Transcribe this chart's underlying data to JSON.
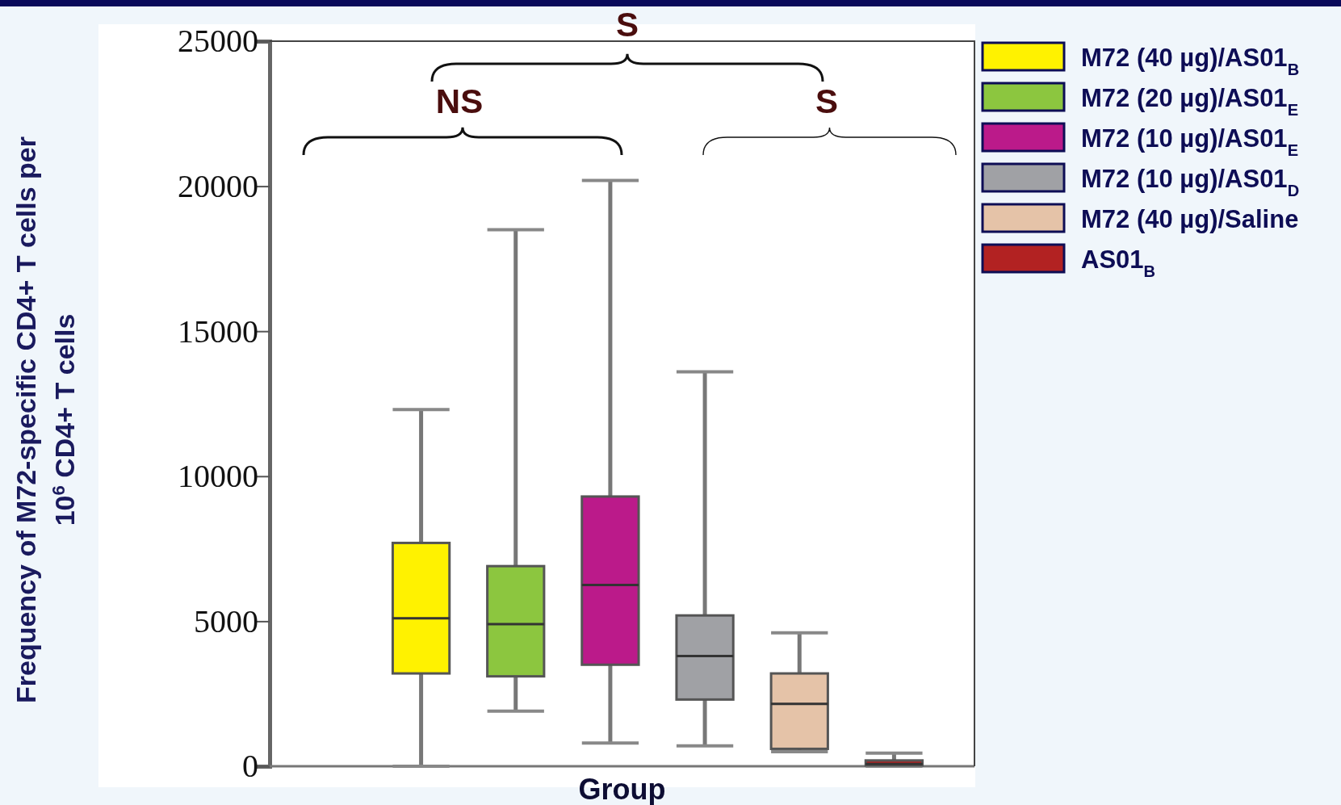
{
  "chart_data": {
    "type": "box",
    "xlabel": "Group",
    "ylabel": "Frequency of M72-specific CD4+ T cells per 10$^{6}$ CD4+ T cells",
    "categories": [
      null
    ],
    "series": [
      {
        "name": "M72 (40 µg)/AS01$_{B}$",
        "color": "#fff200",
        "boxes": [
          {
            "low": 0,
            "q1": 3200,
            "median": 5100,
            "q3": 7700,
            "high": 12300
          }
        ]
      },
      {
        "name": "M72 (20 µg)/AS01$_{E}$",
        "color": "#8cc63f",
        "boxes": [
          {
            "low": 1900,
            "q1": 3100,
            "median": 4900,
            "q3": 6900,
            "high": 18500
          }
        ]
      },
      {
        "name": "M72 (10 µg)/AS01$_{E}$",
        "color": "#bb1a8a",
        "boxes": [
          {
            "low": 800,
            "q1": 3500,
            "median": 6250,
            "q3": 9300,
            "high": 20200
          }
        ]
      },
      {
        "name": "M72 (10 µg)/AS01$_{D}$",
        "color": "#a0a1a5",
        "boxes": [
          {
            "low": 700,
            "q1": 2300,
            "median": 3800,
            "q3": 5200,
            "high": 13600
          }
        ]
      },
      {
        "name": "M72 (40 µg)/Saline",
        "color": "#e5c3a8",
        "boxes": [
          {
            "low": 500,
            "q1": 600,
            "median": 2150,
            "q3": 3200,
            "high": 4600
          }
        ]
      },
      {
        "name": "AS01$_{B}$",
        "color": "#b22222",
        "boxes": [
          {
            "low": 0,
            "q1": 30,
            "median": 80,
            "q3": 200,
            "high": 450
          }
        ]
      }
    ],
    "ylim": [
      0,
      25000
    ],
    "yticks": [
      0,
      5000,
      10000,
      15000,
      20000,
      25000
    ],
    "annotations": [
      "S",
      "NS",
      "S"
    ],
    "legend": "top right"
  }
}
